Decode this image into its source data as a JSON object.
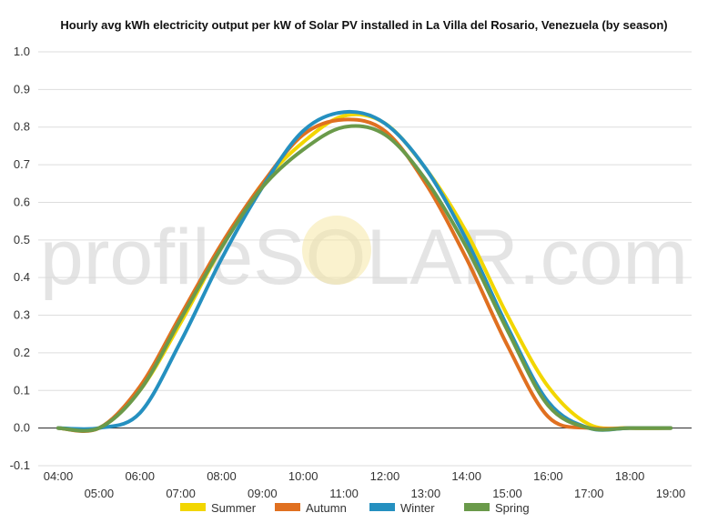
{
  "watermark": "profileSOLAR.com",
  "chart_data": {
    "type": "line",
    "title": "Hourly avg kWh electricity output per kW of Solar PV installed in La Villa del Rosario, Venezuela (by season)",
    "xlabel": "",
    "ylabel": "",
    "x": [
      "04:00",
      "05:00",
      "06:00",
      "07:00",
      "08:00",
      "09:00",
      "10:00",
      "11:00",
      "12:00",
      "13:00",
      "14:00",
      "15:00",
      "16:00",
      "17:00",
      "18:00",
      "19:00"
    ],
    "ylim": [
      -0.1,
      1.0
    ],
    "yticks": [
      "-0.1",
      "0.0",
      "0.1",
      "0.2",
      "0.3",
      "0.4",
      "0.5",
      "0.6",
      "0.7",
      "0.8",
      "0.9",
      "1.0"
    ],
    "grid": true,
    "legend_position": "bottom",
    "series": [
      {
        "name": "Summer",
        "color": "#f2d600",
        "values": [
          0.0,
          0.0,
          0.1,
          0.28,
          0.48,
          0.65,
          0.76,
          0.83,
          0.81,
          0.69,
          0.52,
          0.3,
          0.11,
          0.01,
          0.0,
          0.0
        ]
      },
      {
        "name": "Autumn",
        "color": "#e07020",
        "values": [
          0.0,
          0.0,
          0.11,
          0.3,
          0.49,
          0.65,
          0.78,
          0.82,
          0.79,
          0.65,
          0.45,
          0.22,
          0.03,
          0.0,
          0.0,
          0.0
        ]
      },
      {
        "name": "Winter",
        "color": "#2590c0",
        "values": [
          0.0,
          0.0,
          0.04,
          0.23,
          0.45,
          0.64,
          0.79,
          0.84,
          0.81,
          0.69,
          0.5,
          0.27,
          0.07,
          0.0,
          0.0,
          0.0
        ]
      },
      {
        "name": "Spring",
        "color": "#6a9a4a",
        "values": [
          0.0,
          0.0,
          0.1,
          0.29,
          0.48,
          0.64,
          0.74,
          0.8,
          0.78,
          0.66,
          0.48,
          0.26,
          0.06,
          0.0,
          0.0,
          0.0
        ]
      }
    ]
  }
}
